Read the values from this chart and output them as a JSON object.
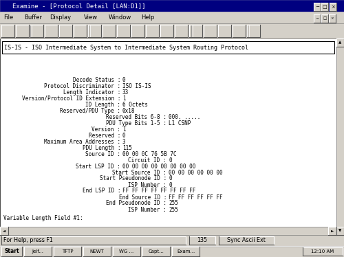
{
  "title_bar": "Examine - [Protocol Detail [LAN:D1]]",
  "menu_items": [
    "File",
    "Buffer",
    "Display",
    "View",
    "Window",
    "Help"
  ],
  "header_box_text": "IS-IS - ISO Intermediate System to Intermediate System Routing Protocol",
  "footer_text": "Variable Length Field #1:",
  "status_bar": "For Help, press F1",
  "status_num": "135",
  "status_right": "Sync Ascii Ext",
  "taskbar_apps": [
    "Jelf...",
    "TFTP",
    "NEWT",
    "WG ...",
    "Capt...",
    "Exam..."
  ],
  "taskbar_time": "12:10 AM",
  "bg_color": "#d4d0c8",
  "content_bg": "#ffffff",
  "title_bg": "#000080",
  "title_text_color": "#ffffff",
  "field_lines": [
    [
      "Decode Status",
      "0",
      175,
      178,
      258
    ],
    [
      "Protocol Discriminator",
      "ISO IS-IS",
      175,
      178,
      249
    ],
    [
      "Length Indicator",
      "33",
      175,
      178,
      240
    ],
    [
      "Version/Protocol ID Extension",
      "1",
      175,
      178,
      231
    ],
    [
      "ID Length",
      "6 Octets",
      175,
      178,
      222
    ],
    [
      "Reserved/PDU Type",
      "0x18",
      175,
      178,
      213
    ],
    [
      "Reserved Bits 6-8",
      "000. .....",
      242,
      245,
      204
    ],
    [
      "PDU Type Bits 1-5",
      "L1 CSNP",
      242,
      245,
      195
    ],
    [
      "Version",
      "1",
      175,
      178,
      186
    ],
    [
      "Reserved",
      "0",
      175,
      178,
      177
    ],
    [
      "Maximum Area Addresses",
      "3",
      175,
      178,
      168
    ],
    [
      "PDU Length",
      "115",
      175,
      178,
      159
    ],
    [
      "Source ID",
      "00 00 0C 76 5B 7C",
      175,
      178,
      150
    ],
    [
      "Circuit ID",
      "0",
      242,
      245,
      141
    ],
    [
      "Start LSP ID",
      "00 00 00 00 00 00 00 00",
      175,
      178,
      132
    ],
    [
      "Start Source ID",
      "00 00 00 00 00 00",
      242,
      245,
      123
    ],
    [
      "Start Pseudonode ID",
      "0",
      242,
      245,
      114
    ],
    [
      "ISP Number",
      "0",
      242,
      245,
      105
    ],
    [
      "End LSP ID",
      "FF FF FF FF FF FF FF FF",
      175,
      178,
      96
    ],
    [
      "End Source ID",
      "FF FF FF FF FF FF",
      242,
      245,
      87
    ],
    [
      "End Pseudonode ID",
      "255",
      242,
      245,
      78
    ],
    [
      "ISP Number",
      "255",
      242,
      245,
      69
    ]
  ]
}
